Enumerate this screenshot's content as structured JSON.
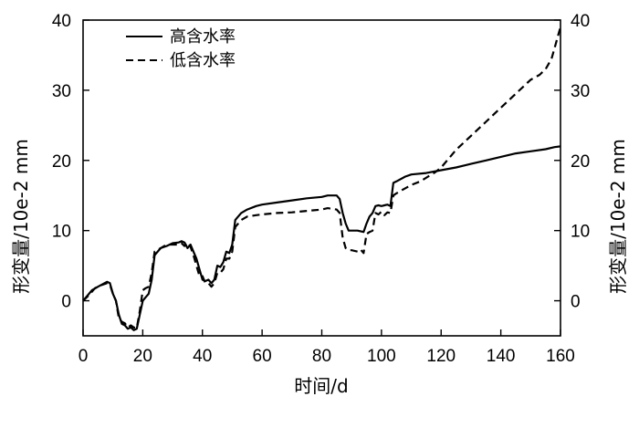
{
  "chart_data": {
    "type": "line",
    "xlabel": "时间/d",
    "ylabel": "形变量/10e-2 mm",
    "ylabel_right": "形变量/10e-2 mm",
    "xlim": [
      0,
      160
    ],
    "ylim": [
      -5,
      40
    ],
    "x_ticks": [
      "0",
      "20",
      "40",
      "60",
      "80",
      "100",
      "120",
      "140",
      "160"
    ],
    "y_ticks": [
      "0",
      "10",
      "20",
      "30",
      "40"
    ],
    "y_ticks_right": [
      "0",
      "10",
      "20",
      "30",
      "40"
    ],
    "legend_position": "top-left",
    "grid": false,
    "series": [
      {
        "name": "高含水率",
        "style": "solid",
        "color": "#000000",
        "points": [
          [
            0,
            0
          ],
          [
            1,
            0.5
          ],
          [
            3,
            1.5
          ],
          [
            5,
            2
          ],
          [
            8,
            2.7
          ],
          [
            9,
            2.5
          ],
          [
            10,
            1
          ],
          [
            11,
            0
          ],
          [
            12,
            -2
          ],
          [
            13,
            -3.3
          ],
          [
            14,
            -3.5
          ],
          [
            15,
            -4
          ],
          [
            16,
            -3.8
          ],
          [
            17,
            -4.2
          ],
          [
            18,
            -4
          ],
          [
            19,
            -2
          ],
          [
            20,
            0
          ],
          [
            21,
            0.5
          ],
          [
            22,
            1
          ],
          [
            23,
            3
          ],
          [
            24,
            6.5
          ],
          [
            26,
            7.5
          ],
          [
            28,
            7.8
          ],
          [
            30,
            8.2
          ],
          [
            32,
            8.3
          ],
          [
            33,
            8.5
          ],
          [
            34,
            8.3
          ],
          [
            35,
            7.5
          ],
          [
            36,
            8
          ],
          [
            37,
            7
          ],
          [
            38,
            6
          ],
          [
            39,
            4.5
          ],
          [
            40,
            3
          ],
          [
            41,
            2.8
          ],
          [
            42,
            3
          ],
          [
            43,
            2.5
          ],
          [
            44,
            3
          ],
          [
            45,
            5
          ],
          [
            46,
            4.8
          ],
          [
            47,
            5.5
          ],
          [
            48,
            7
          ],
          [
            49,
            6.8
          ],
          [
            50,
            8
          ],
          [
            51,
            11.5
          ],
          [
            53,
            12.5
          ],
          [
            55,
            13
          ],
          [
            58,
            13.5
          ],
          [
            60,
            13.7
          ],
          [
            65,
            14
          ],
          [
            70,
            14.3
          ],
          [
            75,
            14.6
          ],
          [
            80,
            14.8
          ],
          [
            82,
            15
          ],
          [
            85,
            15
          ],
          [
            86,
            14.5
          ],
          [
            87,
            12.5
          ],
          [
            88,
            11
          ],
          [
            89,
            10
          ],
          [
            90,
            10
          ],
          [
            92,
            10
          ],
          [
            94,
            9.8
          ],
          [
            95,
            11
          ],
          [
            96,
            12
          ],
          [
            97,
            12.5
          ],
          [
            98,
            13.5
          ],
          [
            99,
            13.6
          ],
          [
            100,
            13.5
          ],
          [
            101,
            13.6
          ],
          [
            102,
            13.7
          ],
          [
            103,
            13.5
          ],
          [
            104,
            16.8
          ],
          [
            105,
            17
          ],
          [
            108,
            17.7
          ],
          [
            110,
            18
          ],
          [
            115,
            18.2
          ],
          [
            120,
            18.6
          ],
          [
            125,
            19
          ],
          [
            130,
            19.5
          ],
          [
            135,
            20
          ],
          [
            140,
            20.5
          ],
          [
            145,
            21
          ],
          [
            150,
            21.3
          ],
          [
            155,
            21.6
          ],
          [
            158,
            21.9
          ],
          [
            160,
            22
          ]
        ]
      },
      {
        "name": "低含水率",
        "style": "dashed",
        "color": "#000000",
        "points": [
          [
            0,
            0
          ],
          [
            2,
            0.8
          ],
          [
            4,
            1.8
          ],
          [
            6,
            2.2
          ],
          [
            8,
            2.5
          ],
          [
            9,
            2.3
          ],
          [
            10,
            1
          ],
          [
            11,
            0
          ],
          [
            12,
            -2.5
          ],
          [
            13,
            -3
          ],
          [
            14,
            -3.2
          ],
          [
            15,
            -3.8
          ],
          [
            16,
            -3.5
          ],
          [
            17,
            -3.8
          ],
          [
            18,
            -3.9
          ],
          [
            19,
            -1.5
          ],
          [
            20,
            1.5
          ],
          [
            21,
            1.8
          ],
          [
            22,
            2
          ],
          [
            23,
            4
          ],
          [
            24,
            7
          ],
          [
            26,
            7.5
          ],
          [
            28,
            8
          ],
          [
            30,
            8
          ],
          [
            32,
            8
          ],
          [
            33,
            8.2
          ],
          [
            34,
            7.8
          ],
          [
            35,
            8.3
          ],
          [
            36,
            7.7
          ],
          [
            37,
            6.5
          ],
          [
            38,
            5
          ],
          [
            39,
            3.5
          ],
          [
            40,
            3.5
          ],
          [
            41,
            2.5
          ],
          [
            42,
            2.5
          ],
          [
            43,
            2
          ],
          [
            44,
            2.5
          ],
          [
            45,
            4
          ],
          [
            46,
            4
          ],
          [
            47,
            4.5
          ],
          [
            48,
            6
          ],
          [
            49,
            6
          ],
          [
            50,
            7
          ],
          [
            51,
            10.5
          ],
          [
            53,
            11.5
          ],
          [
            55,
            12
          ],
          [
            58,
            12.2
          ],
          [
            60,
            12.3
          ],
          [
            65,
            12.5
          ],
          [
            70,
            12.6
          ],
          [
            75,
            12.8
          ],
          [
            80,
            13
          ],
          [
            82,
            13.2
          ],
          [
            85,
            13
          ],
          [
            86,
            12.5
          ],
          [
            87,
            9
          ],
          [
            88,
            7.5
          ],
          [
            89,
            7.2
          ],
          [
            90,
            7.2
          ],
          [
            92,
            7
          ],
          [
            93,
            7.3
          ],
          [
            94,
            6.8
          ],
          [
            95,
            9.5
          ],
          [
            96,
            9.8
          ],
          [
            97,
            10
          ],
          [
            98,
            12.5
          ],
          [
            99,
            12.3
          ],
          [
            100,
            12.7
          ],
          [
            101,
            12.2
          ],
          [
            102,
            12.6
          ],
          [
            103,
            12.5
          ],
          [
            104,
            15
          ],
          [
            105,
            15.3
          ],
          [
            107,
            15.8
          ],
          [
            110,
            16.5
          ],
          [
            113,
            17
          ],
          [
            116,
            17.8
          ],
          [
            118,
            18.3
          ],
          [
            120,
            19
          ],
          [
            123,
            20.5
          ],
          [
            125,
            21.5
          ],
          [
            130,
            23.5
          ],
          [
            135,
            25.5
          ],
          [
            140,
            27.5
          ],
          [
            145,
            29.5
          ],
          [
            150,
            31.5
          ],
          [
            153,
            32.2
          ],
          [
            155,
            33
          ],
          [
            157,
            34.5
          ],
          [
            158,
            36
          ],
          [
            159,
            37.5
          ],
          [
            160,
            39
          ]
        ]
      }
    ]
  }
}
